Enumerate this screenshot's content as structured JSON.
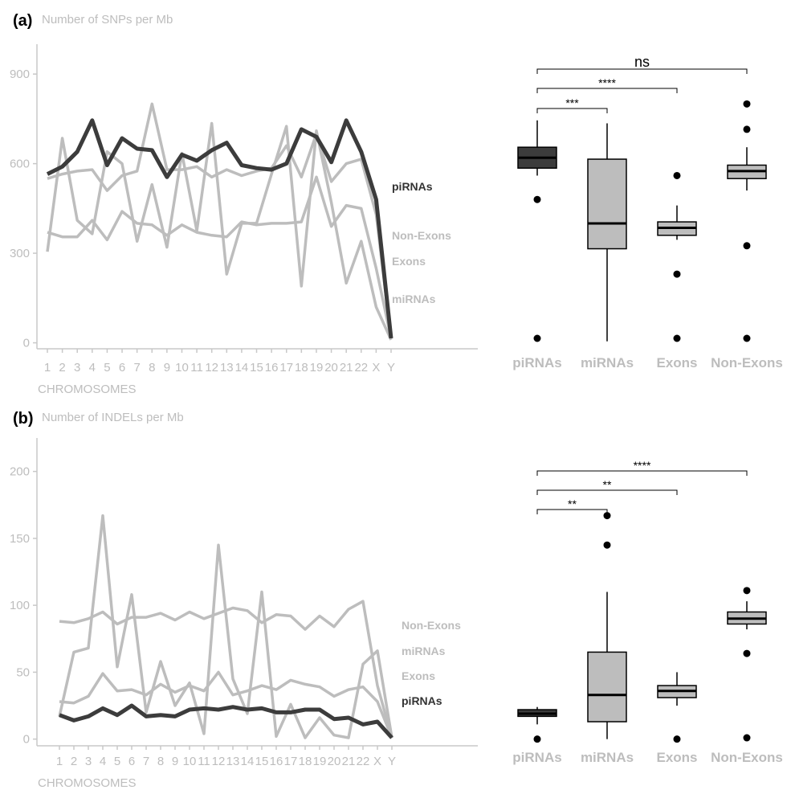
{
  "panels": [
    {
      "letter": "(a)",
      "ylabel": "Number of SNPs per Mb",
      "xlabel": "CHROMOSOMES",
      "chromosomes": [
        "1",
        "2",
        "3",
        "4",
        "5",
        "6",
        "7",
        "8",
        "9",
        "10",
        "11",
        "12",
        "13",
        "14",
        "15",
        "16",
        "17",
        "18",
        "19",
        "20",
        "21",
        "22",
        "X",
        "Y"
      ],
      "yticks": [
        0,
        300,
        600,
        900
      ],
      "ylim": [
        -20,
        1000
      ],
      "colors": {
        "piRNAs": "#3c3c3c",
        "others": "#bdbdbd",
        "box_dark": "#3c3c3c",
        "box_light": "#bdbdbd"
      },
      "line_labels": [
        {
          "name": "piRNAs",
          "dark": true
        },
        {
          "name": "Non-Exons",
          "dark": false
        },
        {
          "name": "Exons",
          "dark": false
        },
        {
          "name": "miRNAs",
          "dark": false
        }
      ],
      "series": [
        {
          "name": "piRNAs",
          "values": [
            565,
            590,
            640,
            745,
            595,
            685,
            650,
            645,
            555,
            630,
            610,
            645,
            670,
            595,
            585,
            580,
            600,
            715,
            690,
            605,
            745,
            640,
            480,
            15
          ]
        },
        {
          "name": "Non-Exons",
          "values": [
            550,
            565,
            575,
            580,
            510,
            560,
            575,
            800,
            580,
            580,
            590,
            555,
            580,
            560,
            575,
            585,
            660,
            555,
            700,
            540,
            600,
            615,
            430,
            15
          ]
        },
        {
          "name": "Exons",
          "values": [
            370,
            355,
            355,
            410,
            345,
            440,
            400,
            395,
            360,
            395,
            370,
            360,
            355,
            405,
            395,
            400,
            400,
            405,
            555,
            390,
            460,
            450,
            250,
            15
          ]
        },
        {
          "name": "miRNAs",
          "values": [
            305,
            685,
            410,
            365,
            640,
            600,
            340,
            530,
            320,
            635,
            375,
            735,
            230,
            400,
            400,
            565,
            725,
            190,
            710,
            470,
            200,
            340,
            120,
            10
          ]
        }
      ],
      "boxplot": {
        "categories": [
          "piRNAs",
          "miRNAs",
          "Exons",
          "Non-Exons"
        ],
        "ylim": [
          -20,
          1000
        ],
        "boxes": [
          {
            "q1": 585,
            "median": 620,
            "q3": 655,
            "whisker_low": 560,
            "whisker_high": 745,
            "outliers": [
              480,
              15
            ],
            "dark": true
          },
          {
            "q1": 315,
            "median": 400,
            "q3": 615,
            "whisker_low": 5,
            "whisker_high": 735,
            "outliers": [],
            "dark": false
          },
          {
            "q1": 360,
            "median": 385,
            "q3": 405,
            "whisker_low": 345,
            "whisker_high": 460,
            "outliers": [
              560,
              230,
              15
            ],
            "dark": false
          },
          {
            "q1": 550,
            "median": 575,
            "q3": 595,
            "whisker_low": 510,
            "whisker_high": 655,
            "outliers": [
              800,
              715,
              325,
              15
            ],
            "dark": false
          }
        ],
        "significance": [
          {
            "from": 0,
            "to": 3,
            "label": "ns"
          },
          {
            "from": 0,
            "to": 2,
            "label": "****"
          },
          {
            "from": 0,
            "to": 1,
            "label": "***"
          }
        ]
      }
    },
    {
      "letter": "(b)",
      "ylabel": "Number of INDELs per Mb",
      "xlabel": "CHROMOSOMES",
      "chromosomes": [
        "1",
        "2",
        "3",
        "4",
        "5",
        "6",
        "7",
        "8",
        "9",
        "10",
        "11",
        "12",
        "13",
        "14",
        "15",
        "16",
        "17",
        "18",
        "19",
        "20",
        "21",
        "22",
        "X",
        "Y"
      ],
      "yticks": [
        0,
        50,
        100,
        150,
        200
      ],
      "ylim": [
        -5,
        225
      ],
      "colors": {
        "piRNAs": "#3c3c3c",
        "others": "#bdbdbd",
        "box_dark": "#3c3c3c",
        "box_light": "#bdbdbd"
      },
      "line_labels": [
        {
          "name": "Non-Exons",
          "dark": false
        },
        {
          "name": "miRNAs",
          "dark": false
        },
        {
          "name": "Exons",
          "dark": false
        },
        {
          "name": "piRNAs",
          "dark": true
        }
      ],
      "series": [
        {
          "name": "piRNAs",
          "values": [
            18,
            14,
            17,
            23,
            18,
            25,
            17,
            18,
            17,
            22,
            23,
            22,
            24,
            22,
            23,
            20,
            20,
            22,
            22,
            15,
            16,
            11,
            13,
            1
          ]
        },
        {
          "name": "Non-Exons",
          "values": [
            88,
            87,
            90,
            95,
            86,
            91,
            91,
            94,
            89,
            95,
            90,
            94,
            98,
            96,
            87,
            93,
            92,
            82,
            92,
            84,
            97,
            103,
            40,
            1
          ]
        },
        {
          "name": "Exons",
          "values": [
            28,
            27,
            32,
            49,
            36,
            37,
            33,
            41,
            35,
            40,
            36,
            50,
            33,
            36,
            40,
            37,
            44,
            41,
            39,
            32,
            37,
            39,
            28,
            1
          ]
        },
        {
          "name": "miRNAs",
          "values": [
            17,
            65,
            68,
            167,
            54,
            108,
            20,
            58,
            25,
            42,
            4,
            145,
            45,
            19,
            110,
            2,
            26,
            1,
            16,
            3,
            1,
            56,
            66,
            1
          ]
        }
      ],
      "boxplot": {
        "categories": [
          "piRNAs",
          "miRNAs",
          "Exons",
          "Non-Exons"
        ],
        "ylim": [
          -5,
          225
        ],
        "boxes": [
          {
            "q1": 17,
            "median": 19,
            "q3": 22,
            "whisker_low": 11,
            "whisker_high": 24,
            "outliers": [
              0
            ],
            "dark": true
          },
          {
            "q1": 13,
            "median": 33,
            "q3": 65,
            "whisker_low": 0,
            "whisker_high": 110,
            "outliers": [
              167,
              145
            ],
            "dark": false
          },
          {
            "q1": 31,
            "median": 36,
            "q3": 40,
            "whisker_low": 25,
            "whisker_high": 50,
            "outliers": [
              0
            ],
            "dark": false
          },
          {
            "q1": 86,
            "median": 90,
            "q3": 95,
            "whisker_low": 82,
            "whisker_high": 103,
            "outliers": [
              111,
              64,
              1
            ],
            "dark": false
          }
        ],
        "significance": [
          {
            "from": 0,
            "to": 3,
            "label": "****"
          },
          {
            "from": 0,
            "to": 2,
            "label": "**"
          },
          {
            "from": 0,
            "to": 1,
            "label": "**"
          }
        ]
      }
    }
  ]
}
